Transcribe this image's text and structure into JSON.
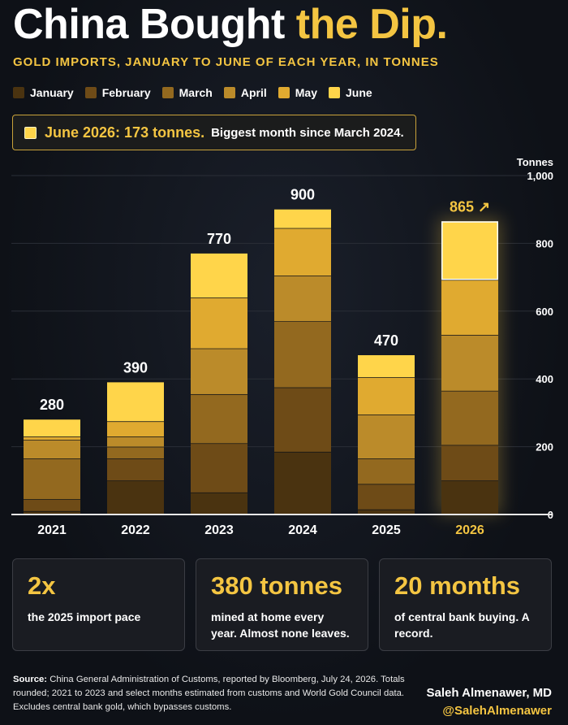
{
  "header": {
    "title_main": "China Bought",
    "title_highlight": "the Dip.",
    "subtitle": "GOLD IMPORTS, JANUARY TO JUNE OF EACH YEAR, IN TONNES"
  },
  "legend": [
    {
      "label": "January",
      "color": "#4a3310"
    },
    {
      "label": "February",
      "color": "#6e4b17"
    },
    {
      "label": "March",
      "color": "#93691f"
    },
    {
      "label": "April",
      "color": "#bb8b2a"
    },
    {
      "label": "May",
      "color": "#e0aa30"
    },
    {
      "label": "June",
      "color": "#ffd54a"
    }
  ],
  "callout": {
    "strong": "June 2026: 173 tonnes.",
    "rest": "Biggest month since March 2024."
  },
  "chart_data": {
    "type": "bar",
    "stacked": true,
    "categories": [
      "2021",
      "2022",
      "2023",
      "2024",
      "2025",
      "2026"
    ],
    "series": [
      {
        "name": "January",
        "values": [
          10,
          100,
          65,
          185,
          15,
          100
        ]
      },
      {
        "name": "February",
        "values": [
          35,
          65,
          145,
          190,
          75,
          105
        ]
      },
      {
        "name": "March",
        "values": [
          120,
          35,
          145,
          195,
          75,
          160
        ]
      },
      {
        "name": "April",
        "values": [
          55,
          30,
          135,
          135,
          130,
          165
        ]
      },
      {
        "name": "May",
        "values": [
          10,
          45,
          150,
          140,
          110,
          162
        ]
      },
      {
        "name": "June",
        "values": [
          50,
          115,
          130,
          55,
          65,
          173
        ]
      }
    ],
    "totals": [
      280,
      390,
      770,
      900,
      470,
      865
    ],
    "total_labels": [
      "280",
      "390",
      "770",
      "900",
      "470",
      "865 ↗"
    ],
    "highlight_category": "2026",
    "ylabel": "Tonnes",
    "ylim": [
      0,
      1000
    ],
    "yticks": [
      0,
      200,
      400,
      600,
      800,
      1000
    ],
    "ytick_labels": [
      "0",
      "200",
      "400",
      "600",
      "800",
      "1,000"
    ],
    "grid": true,
    "axis_position": "right"
  },
  "cards": [
    {
      "value": "2x",
      "text": "the 2025 import pace"
    },
    {
      "value": "380 tonnes",
      "text": "mined at home every year. Almost none leaves."
    },
    {
      "value": "20 months",
      "text": "of central bank buying. A record."
    }
  ],
  "footer": {
    "source_label": "Source:",
    "source_text": "China General Administration of Customs, reported by Bloomberg, July 24, 2026. Totals rounded; 2021 to 2023 and select months estimated from customs and World Gold Council data. Excludes central bank gold, which bypasses customs.",
    "author": "Saleh Almenawer, MD",
    "handle": "@SalehAlmenawer"
  },
  "colors": {
    "accent": "#f4c542",
    "background": "#10131a"
  }
}
